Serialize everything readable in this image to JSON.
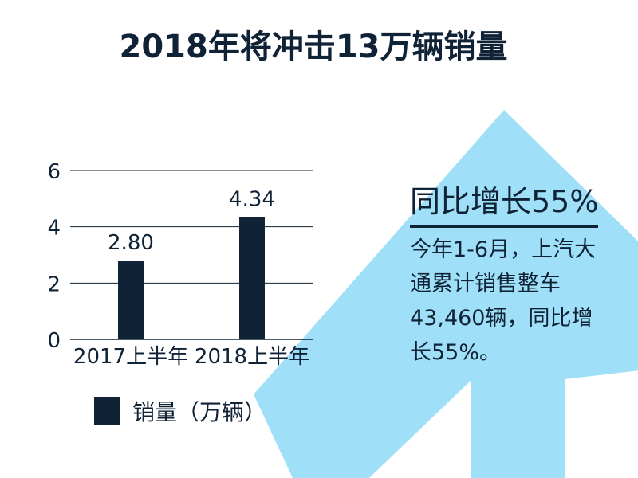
{
  "title": "2018年将冲击13万辆销量",
  "colors": {
    "bar": "#0f2236",
    "arrow": "#9fe0f8",
    "grid": "#0f2236",
    "text": "#0f2236"
  },
  "chart_data": {
    "type": "bar",
    "categories": [
      "2017上半年",
      "2018上半年"
    ],
    "series": [
      {
        "name": "销量（万辆）",
        "values": [
          2.8,
          4.34
        ],
        "value_labels": [
          "2.80",
          "4.34"
        ]
      }
    ],
    "yticks": [
      "0",
      "2",
      "4",
      "6"
    ],
    "ylim": [
      0,
      6
    ],
    "grid": true,
    "legend_position": "bottom-left"
  },
  "legend": {
    "label": "销量（万辆）"
  },
  "callout": {
    "heading": "同比增长55%",
    "body_lines": [
      "今年1-6月，上汽大",
      "通累计销售整车",
      "43,460辆，同比增",
      "长55%。"
    ]
  }
}
